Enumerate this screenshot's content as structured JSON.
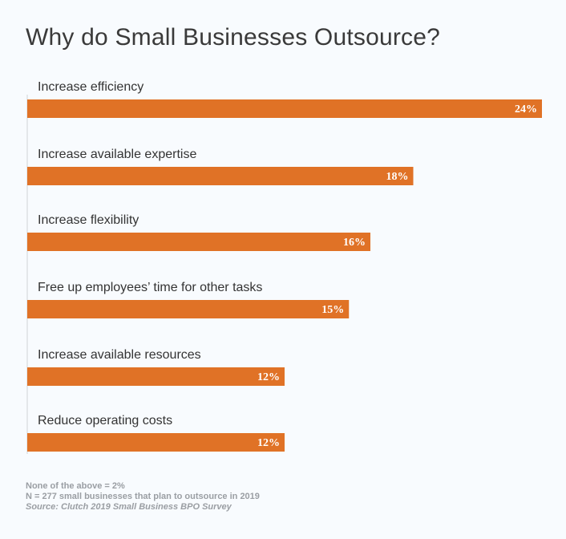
{
  "chart_data": {
    "type": "bar",
    "orientation": "horizontal",
    "title": "Why do Small Businesses Outsource?",
    "categories": [
      "Increase efficiency",
      "Increase available expertise",
      "Increase flexibility",
      "Free up employees’ time for other tasks",
      "Increase available resources",
      "Reduce operating costs"
    ],
    "values": [
      24,
      18,
      16,
      15,
      12,
      12
    ],
    "value_labels": [
      "24%",
      "18%",
      "16%",
      "15%",
      "12%",
      "12%"
    ],
    "xlim": [
      0,
      24
    ],
    "xlabel": "",
    "ylabel": "",
    "grid": false,
    "bar_color": "#e07226"
  },
  "notes": {
    "line1": "None of the above = 2%",
    "line2": "N = 277 small businesses that plan to outsource in 2019",
    "source": "Source: Clutch 2019 Small Business BPO Survey"
  }
}
